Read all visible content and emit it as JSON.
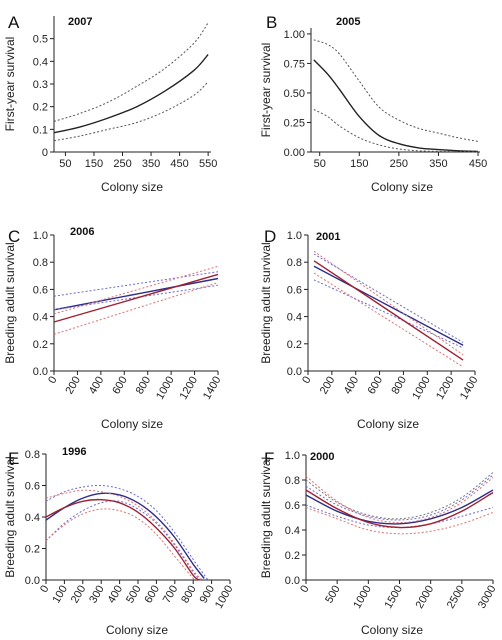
{
  "chart_data": [
    {
      "panel": "A",
      "title": "2007",
      "type": "line",
      "xlabel": "Colony size",
      "ylabel": "First-year survival",
      "xlim": [
        10,
        560
      ],
      "ylim": [
        0,
        0.6
      ],
      "xticks": [
        50,
        150,
        250,
        350,
        450,
        550
      ],
      "yticks": [
        0,
        0.1,
        0.2,
        0.3,
        0.4,
        0.5
      ],
      "ytick_labels": [
        "0",
        "0.1",
        "0.2",
        "0.3",
        "0.4",
        "0.5"
      ],
      "series": [
        {
          "role": "fit",
          "color": "#222222",
          "dashed": false,
          "x": [
            10,
            100,
            200,
            300,
            400,
            500,
            550
          ],
          "y": [
            0.085,
            0.11,
            0.15,
            0.2,
            0.27,
            0.36,
            0.43
          ]
        },
        {
          "role": "upper-ci",
          "color": "#555555",
          "dashed": true,
          "x": [
            10,
            100,
            200,
            300,
            400,
            500,
            550
          ],
          "y": [
            0.135,
            0.17,
            0.22,
            0.29,
            0.37,
            0.48,
            0.57
          ]
        },
        {
          "role": "lower-ci",
          "color": "#555555",
          "dashed": true,
          "x": [
            10,
            100,
            200,
            300,
            400,
            500,
            550
          ],
          "y": [
            0.05,
            0.07,
            0.1,
            0.13,
            0.18,
            0.25,
            0.31
          ]
        }
      ]
    },
    {
      "panel": "B",
      "title": "2005",
      "type": "line",
      "xlabel": "Colony size",
      "ylabel": "First-year survival",
      "xlim": [
        28,
        455
      ],
      "ylim": [
        0,
        1.05
      ],
      "xticks": [
        50,
        150,
        250,
        350,
        450
      ],
      "yticks": [
        0,
        0.25,
        0.5,
        0.75,
        1.0
      ],
      "ytick_labels": [
        "0.00",
        "0.25",
        "0.50",
        "0.75",
        "1.00"
      ],
      "series": [
        {
          "role": "fit",
          "color": "#222222",
          "dashed": false,
          "x": [
            35,
            70,
            100,
            150,
            200,
            250,
            300,
            350,
            400,
            450
          ],
          "y": [
            0.78,
            0.66,
            0.53,
            0.3,
            0.14,
            0.07,
            0.035,
            0.02,
            0.01,
            0.005
          ]
        },
        {
          "role": "upper-ci",
          "color": "#555555",
          "dashed": true,
          "x": [
            35,
            70,
            100,
            150,
            200,
            250,
            300,
            350,
            400,
            450
          ],
          "y": [
            0.95,
            0.91,
            0.83,
            0.6,
            0.38,
            0.27,
            0.2,
            0.16,
            0.12,
            0.09
          ]
        },
        {
          "role": "lower-ci",
          "color": "#555555",
          "dashed": true,
          "x": [
            35,
            70,
            100,
            150,
            200,
            250,
            300,
            350,
            400,
            450
          ],
          "y": [
            0.36,
            0.3,
            0.22,
            0.12,
            0.06,
            0.025,
            0.01,
            0.005,
            0.003,
            0.001
          ]
        }
      ]
    },
    {
      "panel": "C",
      "title": "2006",
      "type": "line",
      "xlabel": "Colony size",
      "ylabel": "Breeding adult survival",
      "xlim": [
        0,
        1400
      ],
      "ylim": [
        0,
        1.0
      ],
      "xticks": [
        0,
        200,
        400,
        600,
        800,
        1000,
        1200,
        1400
      ],
      "yticks": [
        0,
        0.2,
        0.4,
        0.6,
        0.8,
        1.0
      ],
      "ytick_labels": [
        "0.0",
        "0.2",
        "0.4",
        "0.6",
        "0.8",
        "1.0"
      ],
      "series": [
        {
          "role": "fit-blue",
          "color": "#2d2d8c",
          "dashed": false,
          "x": [
            0,
            1400
          ],
          "y": [
            0.45,
            0.68
          ]
        },
        {
          "role": "upper-ci-blue",
          "color": "#6a6ad0",
          "dashed": true,
          "x": [
            0,
            1400
          ],
          "y": [
            0.55,
            0.73
          ]
        },
        {
          "role": "lower-ci-blue",
          "color": "#6a6ad0",
          "dashed": true,
          "x": [
            0,
            1400
          ],
          "y": [
            0.45,
            0.63
          ]
        },
        {
          "role": "fit-red",
          "color": "#a02030",
          "dashed": false,
          "x": [
            0,
            1400
          ],
          "y": [
            0.36,
            0.71
          ]
        },
        {
          "role": "upper-ci-red",
          "color": "#e07070",
          "dashed": true,
          "x": [
            0,
            1400
          ],
          "y": [
            0.42,
            0.77
          ]
        },
        {
          "role": "lower-ci-red",
          "color": "#e07070",
          "dashed": true,
          "x": [
            0,
            1400
          ],
          "y": [
            0.27,
            0.65
          ]
        }
      ]
    },
    {
      "panel": "D",
      "title": "2001",
      "type": "line",
      "xlabel": "Colony size",
      "ylabel": "Breeding adult survival",
      "xlim": [
        0,
        1400
      ],
      "ylim": [
        0,
        1.0
      ],
      "xticks": [
        0,
        200,
        400,
        600,
        800,
        1000,
        1200,
        1400
      ],
      "yticks": [
        0,
        0.2,
        0.4,
        0.6,
        0.8,
        1.0
      ],
      "ytick_labels": [
        "0.0",
        "0.2",
        "0.4",
        "0.6",
        "0.8",
        "1.0"
      ],
      "series": [
        {
          "role": "fit-blue",
          "color": "#2d2d8c",
          "dashed": false,
          "x": [
            50,
            1300
          ],
          "y": [
            0.77,
            0.19
          ]
        },
        {
          "role": "upper-ci-blue",
          "color": "#6a6ad0",
          "dashed": true,
          "x": [
            50,
            1300
          ],
          "y": [
            0.86,
            0.21
          ]
        },
        {
          "role": "lower-ci-blue",
          "color": "#6a6ad0",
          "dashed": true,
          "x": [
            50,
            1300
          ],
          "y": [
            0.67,
            0.17
          ]
        },
        {
          "role": "fit-red",
          "color": "#a02030",
          "dashed": false,
          "x": [
            50,
            1300
          ],
          "y": [
            0.81,
            0.08
          ]
        },
        {
          "role": "upper-ci-red",
          "color": "#e07070",
          "dashed": true,
          "x": [
            50,
            1300
          ],
          "y": [
            0.88,
            0.12
          ]
        },
        {
          "role": "lower-ci-red",
          "color": "#e07070",
          "dashed": true,
          "x": [
            50,
            1300
          ],
          "y": [
            0.72,
            0.03
          ]
        }
      ]
    },
    {
      "panel": "E",
      "title": "1996",
      "type": "line",
      "xlabel": "Colony size",
      "ylabel": "Breeding adult survival",
      "xlim": [
        0,
        1000
      ],
      "ylim": [
        0,
        0.8
      ],
      "xticks": [
        0,
        100,
        200,
        300,
        400,
        500,
        600,
        700,
        800,
        900,
        1000
      ],
      "yticks": [
        0,
        0.2,
        0.4,
        0.6,
        0.8
      ],
      "ytick_labels": [
        "0.0",
        "0.2",
        "0.4",
        "0.6",
        "0.8"
      ],
      "series": [
        {
          "role": "fit-blue",
          "color": "#2d2d8c",
          "dashed": false,
          "x": [
            0,
            100,
            200,
            300,
            400,
            500,
            600,
            700,
            800,
            860
          ],
          "y": [
            0.38,
            0.46,
            0.52,
            0.55,
            0.54,
            0.49,
            0.4,
            0.27,
            0.1,
            0.01
          ]
        },
        {
          "role": "upper-ci-blue",
          "color": "#6a6ad0",
          "dashed": true,
          "x": [
            0,
            100,
            200,
            300,
            400,
            500,
            600,
            700,
            800,
            880
          ],
          "y": [
            0.5,
            0.56,
            0.59,
            0.6,
            0.58,
            0.53,
            0.44,
            0.3,
            0.13,
            0.0
          ]
        },
        {
          "role": "lower-ci-blue",
          "color": "#6a6ad0",
          "dashed": true,
          "x": [
            0,
            100,
            200,
            300,
            400,
            500,
            600,
            700,
            800,
            840
          ],
          "y": [
            0.25,
            0.36,
            0.44,
            0.49,
            0.5,
            0.45,
            0.36,
            0.22,
            0.05,
            0.0
          ]
        },
        {
          "role": "fit-red",
          "color": "#a02030",
          "dashed": false,
          "x": [
            0,
            100,
            200,
            300,
            400,
            500,
            600,
            700,
            800,
            835
          ],
          "y": [
            0.4,
            0.46,
            0.5,
            0.51,
            0.49,
            0.43,
            0.33,
            0.2,
            0.03,
            0.0
          ]
        },
        {
          "role": "upper-ci-red",
          "color": "#e07070",
          "dashed": true,
          "x": [
            0,
            100,
            200,
            300,
            400,
            500,
            600,
            700,
            800,
            850
          ],
          "y": [
            0.52,
            0.55,
            0.57,
            0.56,
            0.53,
            0.47,
            0.37,
            0.23,
            0.06,
            0.0
          ]
        },
        {
          "role": "lower-ci-red",
          "color": "#e07070",
          "dashed": true,
          "x": [
            0,
            100,
            200,
            300,
            400,
            500,
            600,
            700,
            800,
            820
          ],
          "y": [
            0.25,
            0.35,
            0.42,
            0.45,
            0.44,
            0.39,
            0.29,
            0.15,
            0.01,
            0.0
          ]
        }
      ]
    },
    {
      "panel": "F",
      "title": "2000",
      "type": "line",
      "xlabel": "Colony size",
      "ylabel": "Breeding adult survival",
      "xlim": [
        0,
        3000
      ],
      "ylim": [
        0,
        1.0
      ],
      "xticks": [
        0,
        500,
        1000,
        1500,
        2000,
        2500,
        3000
      ],
      "yticks": [
        0,
        0.2,
        0.4,
        0.6,
        0.8,
        1.0
      ],
      "ytick_labels": [
        "0.0",
        "0.2",
        "0.4",
        "0.6",
        "0.8",
        "1.0"
      ],
      "series": [
        {
          "role": "fit-blue",
          "color": "#2d2d8c",
          "dashed": false,
          "x": [
            0,
            500,
            1000,
            1500,
            2000,
            2500,
            3000
          ],
          "y": [
            0.68,
            0.55,
            0.47,
            0.45,
            0.49,
            0.58,
            0.72
          ]
        },
        {
          "role": "upper-ci-blue",
          "color": "#6a6ad0",
          "dashed": true,
          "x": [
            0,
            500,
            1000,
            1500,
            2000,
            2500,
            3000
          ],
          "y": [
            0.75,
            0.6,
            0.51,
            0.48,
            0.52,
            0.64,
            0.84
          ]
        },
        {
          "role": "lower-ci-blue",
          "color": "#6a6ad0",
          "dashed": true,
          "x": [
            0,
            500,
            1000,
            1500,
            2000,
            2500,
            3000
          ],
          "y": [
            0.6,
            0.51,
            0.44,
            0.42,
            0.45,
            0.51,
            0.58
          ]
        },
        {
          "role": "fit-red",
          "color": "#a02030",
          "dashed": false,
          "x": [
            0,
            500,
            1000,
            1500,
            2000,
            2500,
            3000
          ],
          "y": [
            0.72,
            0.57,
            0.46,
            0.42,
            0.45,
            0.55,
            0.7
          ]
        },
        {
          "role": "upper-ci-red",
          "color": "#e07070",
          "dashed": true,
          "x": [
            0,
            500,
            1000,
            1500,
            2000,
            2500,
            3000
          ],
          "y": [
            0.83,
            0.63,
            0.5,
            0.46,
            0.5,
            0.62,
            0.82
          ]
        },
        {
          "role": "lower-ci-red",
          "color": "#e07070",
          "dashed": true,
          "x": [
            0,
            500,
            1000,
            1500,
            2000,
            2500,
            3000
          ],
          "y": [
            0.58,
            0.49,
            0.4,
            0.37,
            0.39,
            0.45,
            0.54
          ]
        },
        {
          "role": "upper-ci-grey",
          "color": "#777777",
          "dashed": true,
          "x": [
            0,
            500,
            1000,
            1500,
            2000,
            2500,
            3000
          ],
          "y": [
            0.8,
            0.62,
            0.52,
            0.49,
            0.54,
            0.66,
            0.86
          ]
        }
      ]
    }
  ]
}
